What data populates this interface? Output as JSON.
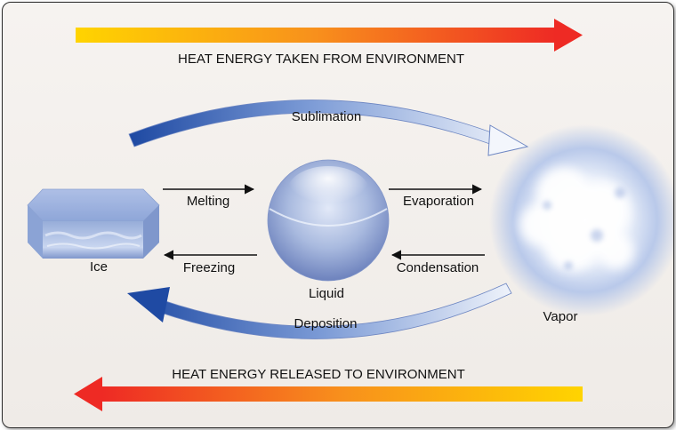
{
  "banners": {
    "top": "HEAT ENERGY TAKEN FROM ENVIRONMENT",
    "bottom": "HEAT ENERGY RELEASED TO ENVIRONMENT"
  },
  "states": {
    "ice": "Ice",
    "liquid": "Liquid",
    "vapor": "Vapor"
  },
  "processes": {
    "sublimation": "Sublimation",
    "melting": "Melting",
    "freezing": "Freezing",
    "evaporation": "Evaporation",
    "condensation": "Condensation",
    "deposition": "Deposition"
  },
  "colors": {
    "heat_hot": "#ee2a24",
    "heat_cold": "#ffd400",
    "arc_dark": "#1f4aa3",
    "arc_light": "#eef2fb"
  }
}
